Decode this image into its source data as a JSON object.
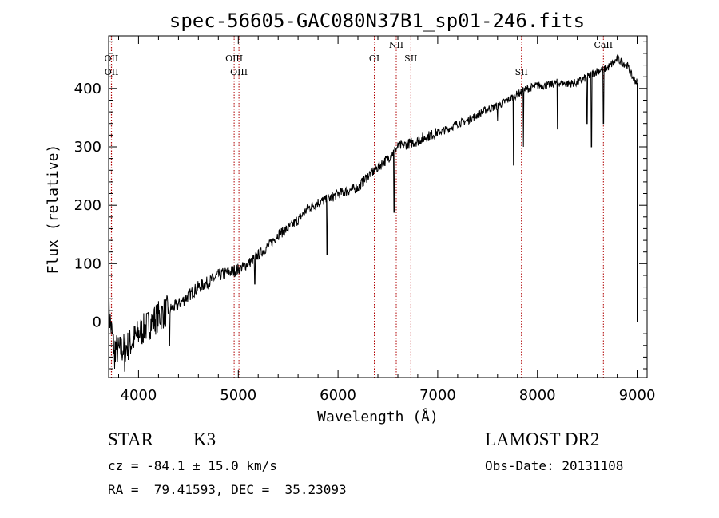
{
  "chart_data": {
    "type": "line",
    "title": "spec-56605-GAC080N37B1_sp01-246.fits",
    "xlabel": "Wavelength (Å)",
    "ylabel": "Flux (relative)",
    "xlim": [
      3700,
      9100
    ],
    "ylim": [
      -95,
      490
    ],
    "x_ticks": [
      4000,
      5000,
      6000,
      7000,
      8000,
      9000
    ],
    "y_ticks": [
      0,
      100,
      200,
      300,
      400
    ],
    "grid": false,
    "line_color": "#000000",
    "marker_color": "#b00000",
    "spectrum_anchors": {
      "x": [
        3700,
        3750,
        3800,
        3900,
        4000,
        4100,
        4200,
        4300,
        4400,
        4500,
        4600,
        4700,
        4800,
        4900,
        5000,
        5100,
        5200,
        5300,
        5400,
        5500,
        5600,
        5700,
        5800,
        5900,
        6000,
        6100,
        6200,
        6300,
        6400,
        6500,
        6600,
        6700,
        6800,
        6900,
        7000,
        7100,
        7200,
        7300,
        7400,
        7500,
        7600,
        7700,
        7800,
        7900,
        8000,
        8100,
        8200,
        8300,
        8400,
        8500,
        8600,
        8700,
        8800,
        8900,
        8950,
        9000
      ],
      "y": [
        20,
        -40,
        -50,
        -40,
        -20,
        -5,
        10,
        20,
        30,
        45,
        60,
        68,
        80,
        85,
        90,
        100,
        115,
        130,
        150,
        160,
        175,
        195,
        205,
        210,
        220,
        225,
        230,
        250,
        265,
        280,
        300,
        305,
        310,
        318,
        325,
        330,
        340,
        345,
        355,
        365,
        370,
        380,
        390,
        400,
        405,
        405,
        410,
        408,
        410,
        420,
        430,
        435,
        450,
        440,
        420,
        410
      ]
    },
    "absorption_features": [
      {
        "x": 3760,
        "y": -80
      },
      {
        "x": 3860,
        "y": -85
      },
      {
        "x": 4310,
        "y": -40
      },
      {
        "x": 5167,
        "y": 65
      },
      {
        "x": 5890,
        "y": 115
      },
      {
        "x": 6563,
        "y": 188
      },
      {
        "x": 7600,
        "y": 345
      },
      {
        "x": 7760,
        "y": 268
      },
      {
        "x": 7860,
        "y": 300
      },
      {
        "x": 8200,
        "y": 330
      },
      {
        "x": 8498,
        "y": 340
      },
      {
        "x": 8542,
        "y": 300
      },
      {
        "x": 8662,
        "y": 340
      }
    ],
    "line_markers": [
      {
        "label": "OII",
        "x": 3727,
        "row": 1
      },
      {
        "label": "OII",
        "x": 3729,
        "row": 2
      },
      {
        "label": "OIII",
        "x": 4959,
        "row": 1
      },
      {
        "label": "OIII",
        "x": 5007,
        "row": 2
      },
      {
        "label": "OI",
        "x": 6364,
        "row": 1
      },
      {
        "label": "NII",
        "x": 6584,
        "row": 0
      },
      {
        "label": "SII",
        "x": 6731,
        "row": 1
      },
      {
        "label": "SII",
        "x": 7840,
        "row": 2
      },
      {
        "label": "CaII",
        "x": 8662,
        "row": 0
      }
    ]
  },
  "info": {
    "object_class": "STAR",
    "subclass": "K3",
    "survey": "LAMOST DR2",
    "velocity": "cz = -84.1 ± 15.0 km/s",
    "obs_date": "Obs-Date: 20131108",
    "coords": "RA =  79.41593, DEC =  35.23093"
  }
}
